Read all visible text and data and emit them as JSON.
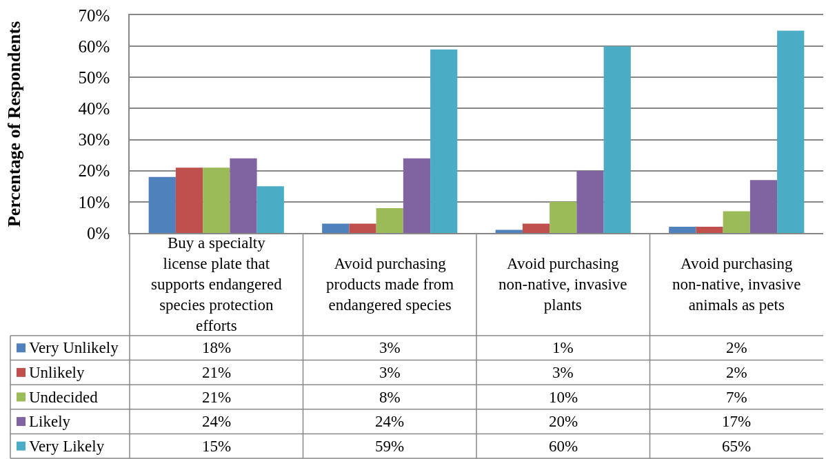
{
  "chart_data": {
    "type": "bar",
    "ylabel": "Percentage of Respondents",
    "categories": [
      "Buy a specialty license plate that supports endangered species protection efforts",
      "Avoid purchasing products made from endangered species",
      "Avoid purchasing non-native, invasive plants",
      "Avoid purchasing non-native, invasive animals as pets"
    ],
    "series": [
      {
        "name": "Very Unlikely",
        "color": "#4f81bd",
        "values": [
          18,
          3,
          1,
          2
        ],
        "value_labels": [
          "18%",
          "3%",
          "1%",
          "2%"
        ]
      },
      {
        "name": "Unlikely",
        "color": "#c0504d",
        "values": [
          21,
          3,
          3,
          2
        ],
        "value_labels": [
          "21%",
          "3%",
          "3%",
          "2%"
        ]
      },
      {
        "name": "Undecided",
        "color": "#9bbb59",
        "values": [
          21,
          8,
          10,
          7
        ],
        "value_labels": [
          "21%",
          "8%",
          "10%",
          "7%"
        ]
      },
      {
        "name": "Likely",
        "color": "#8064a2",
        "values": [
          24,
          24,
          20,
          17
        ],
        "value_labels": [
          "24%",
          "24%",
          "20%",
          "17%"
        ]
      },
      {
        "name": "Very Likely",
        "color": "#4bacc6",
        "values": [
          15,
          59,
          60,
          65
        ],
        "value_labels": [
          "15%",
          "59%",
          "60%",
          "65%"
        ]
      }
    ],
    "ylim": [
      0,
      70
    ],
    "yticks": [
      {
        "value": 0,
        "label": "0%"
      },
      {
        "value": 10,
        "label": "10%"
      },
      {
        "value": 20,
        "label": "20%"
      },
      {
        "value": 30,
        "label": "30%"
      },
      {
        "value": 40,
        "label": "40%"
      },
      {
        "value": 50,
        "label": "50%"
      },
      {
        "value": 60,
        "label": "60%"
      },
      {
        "value": 70,
        "label": "70%"
      }
    ],
    "grid": "y",
    "legend": "bottom left"
  }
}
